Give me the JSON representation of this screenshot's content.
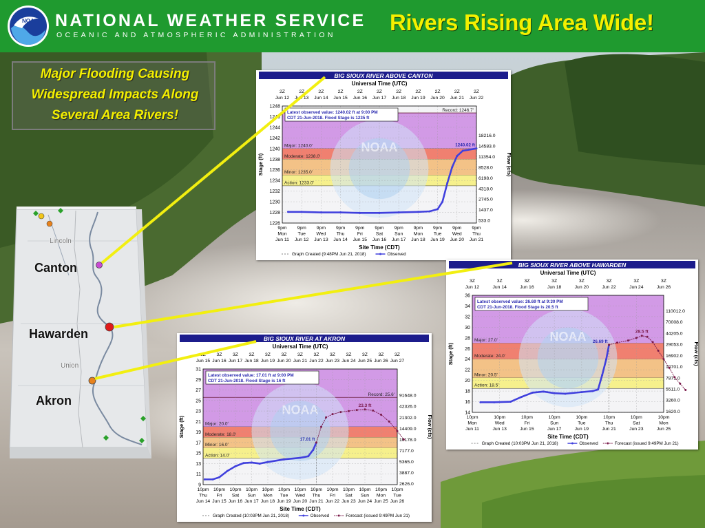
{
  "header": {
    "agency": "NATIONAL WEATHER SERVICE",
    "subagency": "OCEANIC AND ATMOSPHERIC ADMINISTRATION",
    "logo_text": "NOAA",
    "headline": "Rivers Rising Area Wide!"
  },
  "callout": {
    "lines": [
      "Major Flooding Causing",
      "Widespread Impacts Along",
      "Several Area Rivers!"
    ]
  },
  "map": {
    "labels": [
      "Canton",
      "Hawarden",
      "Akron"
    ],
    "places": [
      "Lincoln",
      "Union"
    ],
    "marker_colors": [
      "#c94ad3",
      "#e01a1a",
      "#e8821c"
    ]
  },
  "colors": {
    "major": "#d29ae6",
    "moderate": "#f08070",
    "minor": "#f3c287",
    "action": "#f6f08c",
    "observed": "#4040dd",
    "forecast": "#7a1a4a",
    "title_bar": "#1c1c8c"
  },
  "chart_data": [
    {
      "id": "canton",
      "type": "line",
      "title": "BIG SIOUX RIVER ABOVE CANTON",
      "top_axis_title": "Universal Time (UTC)",
      "bottom_axis_title": "Site Time (CDT)",
      "ylabel": "Stage (ft)",
      "y2label": "Flow (cfs)",
      "ylim": [
        1226,
        1248
      ],
      "yticks": [
        1226,
        1228,
        1230,
        1232,
        1234,
        1236,
        1238,
        1240,
        1242,
        1244,
        1246,
        1248
      ],
      "flow_ticks": [
        {
          "stage": 1226.5,
          "label": "533.0"
        },
        {
          "stage": 1228.5,
          "label": "1437.0"
        },
        {
          "stage": 1230.5,
          "label": "2745.0"
        },
        {
          "stage": 1232.5,
          "label": "4318.0"
        },
        {
          "stage": 1234.5,
          "label": "6198.0"
        },
        {
          "stage": 1236.5,
          "label": "8528.0"
        },
        {
          "stage": 1238.5,
          "label": "11354.0"
        },
        {
          "stage": 1240.5,
          "label": "14583.0"
        },
        {
          "stage": 1242.5,
          "label": "18216.0"
        }
      ],
      "bottom_ticks": [
        [
          "9pm",
          "Mon",
          "Jun 11"
        ],
        [
          "9pm",
          "Tue",
          "Jun 12"
        ],
        [
          "9pm",
          "Wed",
          "Jun 13"
        ],
        [
          "9pm",
          "Thu",
          "Jun 14"
        ],
        [
          "9pm",
          "Fri",
          "Jun 15"
        ],
        [
          "9pm",
          "Sat",
          "Jun 16"
        ],
        [
          "9pm",
          "Sun",
          "Jun 17"
        ],
        [
          "9pm",
          "Mon",
          "Jun 18"
        ],
        [
          "9pm",
          "Tue",
          "Jun 19"
        ],
        [
          "9pm",
          "Wed",
          "Jun 20"
        ],
        [
          "9pm",
          "Thu",
          "Jun 21"
        ]
      ],
      "top_ticks": [
        [
          "2Z",
          "Jun 12"
        ],
        [
          "2Z",
          "Jun 13"
        ],
        [
          "2Z",
          "Jun 14"
        ],
        [
          "2Z",
          "Jun 15"
        ],
        [
          "2Z",
          "Jun 16"
        ],
        [
          "2Z",
          "Jun 17"
        ],
        [
          "2Z",
          "Jun 18"
        ],
        [
          "2Z",
          "Jun 19"
        ],
        [
          "2Z",
          "Jun 20"
        ],
        [
          "2Z",
          "Jun 21"
        ],
        [
          "2Z",
          "Jun 22"
        ]
      ],
      "stages": [
        {
          "name": "Major",
          "label": "Major: 1240.0'",
          "from": 1240,
          "to": 1246.7
        },
        {
          "name": "Moderate",
          "label": "Moderate: 1238.0'",
          "from": 1238,
          "to": 1240
        },
        {
          "name": "Minor",
          "label": "Minor: 1235.0'",
          "from": 1235,
          "to": 1238
        },
        {
          "name": "Action",
          "label": "Action: 1233.0'",
          "from": 1233,
          "to": 1235
        }
      ],
      "record": {
        "value": 1246.7,
        "label": "Record: 1246.7'"
      },
      "latest_lines": [
        "Latest observed value: 1240.02 ft at 9:00 PM",
        "CDT 21-Jun-2018. Flood Stage is 1235 ft"
      ],
      "observed": [
        [
          0.3,
          1228.1
        ],
        [
          1,
          1228.1
        ],
        [
          2,
          1228.0
        ],
        [
          3,
          1228.0
        ],
        [
          4,
          1227.9
        ],
        [
          5,
          1227.9
        ],
        [
          6,
          1228.0
        ],
        [
          7,
          1228.1
        ],
        [
          7.6,
          1228.2
        ],
        [
          8,
          1228.6
        ],
        [
          8.25,
          1230
        ],
        [
          8.5,
          1233.5
        ],
        [
          8.75,
          1236.5
        ],
        [
          9,
          1238.6
        ],
        [
          9.3,
          1239.6
        ],
        [
          10,
          1240.02
        ]
      ],
      "observed_label": "1240.02 ft",
      "forecast": [],
      "legend": [
        "Graph Created (9:48PM Jun 21, 2018)",
        "Observed"
      ]
    },
    {
      "id": "hawarden",
      "type": "line",
      "title": "BIG SIOUX RIVER ABOVE HAWARDEN",
      "top_axis_title": "Universal Time (UTC)",
      "bottom_axis_title": "Site Time (CDT)",
      "ylabel": "Stage (ft)",
      "y2label": "Flow (cfs)",
      "ylim": [
        14,
        36
      ],
      "yticks": [
        14,
        16,
        18,
        20,
        22,
        24,
        26,
        28,
        30,
        32,
        34,
        36
      ],
      "flow_ticks": [
        {
          "stage": 14.2,
          "label": "1620.0"
        },
        {
          "stage": 16.3,
          "label": "3260.0"
        },
        {
          "stage": 18.4,
          "label": "5511.0"
        },
        {
          "stage": 20.5,
          "label": "7871.0"
        },
        {
          "stage": 22.6,
          "label": "10701.0"
        },
        {
          "stage": 24.7,
          "label": "16902.0"
        },
        {
          "stage": 26.8,
          "label": "29053.0"
        },
        {
          "stage": 28.9,
          "label": "44205.0"
        },
        {
          "stage": 31.0,
          "label": "70008.0"
        },
        {
          "stage": 33.1,
          "label": "110012.0"
        }
      ],
      "bottom_ticks": [
        [
          "10pm",
          "Mon",
          "Jun 11"
        ],
        [
          "10pm",
          "Wed",
          "Jun 13"
        ],
        [
          "10pm",
          "Fri",
          "Jun 15"
        ],
        [
          "10pm",
          "Sun",
          "Jun 17"
        ],
        [
          "10pm",
          "Tue",
          "Jun 19"
        ],
        [
          "10pm",
          "Thu",
          "Jun 21"
        ],
        [
          "10pm",
          "Sat",
          "Jun 23"
        ],
        [
          "10pm",
          "Mon",
          "Jun 25"
        ]
      ],
      "top_ticks": [
        [
          "3Z",
          "Jun 12"
        ],
        [
          "3Z",
          "Jun 14"
        ],
        [
          "3Z",
          "Jun 16"
        ],
        [
          "3Z",
          "Jun 18"
        ],
        [
          "3Z",
          "Jun 20"
        ],
        [
          "3Z",
          "Jun 22"
        ],
        [
          "3Z",
          "Jun 24"
        ],
        [
          "3Z",
          "Jun 26"
        ]
      ],
      "stages": [
        {
          "name": "Major",
          "label": "Major: 27.0'",
          "from": 27,
          "to": 36
        },
        {
          "name": "Moderate",
          "label": "Moderate: 24.0'",
          "from": 24,
          "to": 27
        },
        {
          "name": "Minor",
          "label": "Minor: 20.5'",
          "from": 20.5,
          "to": 24
        },
        {
          "name": "Action",
          "label": "Action: 18.5'",
          "from": 18.5,
          "to": 20.5
        }
      ],
      "record": null,
      "latest_lines": [
        "Latest observed value: 26.69 ft at 9:30 PM",
        "CDT 21-Jun-2018. Flood Stage is 20.5 ft"
      ],
      "observed": [
        [
          0.3,
          15.9
        ],
        [
          0.8,
          15.9
        ],
        [
          1.4,
          16.0
        ],
        [
          1.8,
          16.9
        ],
        [
          2.2,
          17.7
        ],
        [
          2.6,
          17.9
        ],
        [
          3.0,
          17.6
        ],
        [
          3.4,
          17.5
        ],
        [
          4.0,
          17.8
        ],
        [
          4.4,
          18.0
        ],
        [
          4.6,
          18.3
        ],
        [
          4.75,
          21
        ],
        [
          4.9,
          24
        ],
        [
          5.0,
          26.69
        ]
      ],
      "observed_label": "26.69 ft",
      "forecast": [
        [
          5.0,
          26.69
        ],
        [
          5.3,
          27.1
        ],
        [
          5.7,
          27.5
        ],
        [
          6.0,
          28.0
        ],
        [
          6.2,
          28.4
        ],
        [
          6.4,
          28.2
        ],
        [
          6.6,
          27.2
        ],
        [
          6.8,
          25.6
        ],
        [
          7.0,
          24.0
        ],
        [
          7.2,
          22.4
        ],
        [
          7.4,
          20.6
        ],
        [
          7.6,
          19.4
        ],
        [
          7.8,
          18.2
        ]
      ],
      "forecast_label": "28.5 ft",
      "legend": [
        "Graph Created (10:03PM Jun 21, 2018)",
        "Observed",
        "Forecast (issued 9:49PM Jun 21)"
      ]
    },
    {
      "id": "akron",
      "type": "line",
      "title": "BIG SIOUX RIVER AT AKRON",
      "top_axis_title": "Universal Time (UTC)",
      "bottom_axis_title": "Site Time (CDT)",
      "ylabel": "Stage (ft)",
      "y2label": "Flow (cfs)",
      "ylim": [
        9,
        31
      ],
      "yticks": [
        9,
        11,
        13,
        15,
        17,
        19,
        21,
        23,
        25,
        27,
        29,
        31
      ],
      "flow_ticks": [
        {
          "stage": 9.2,
          "label": "2626.0"
        },
        {
          "stage": 11.3,
          "label": "3887.0"
        },
        {
          "stage": 13.4,
          "label": "5365.0"
        },
        {
          "stage": 15.5,
          "label": "7177.0"
        },
        {
          "stage": 17.6,
          "label": "10178.0"
        },
        {
          "stage": 19.7,
          "label": "14409.0"
        },
        {
          "stage": 21.8,
          "label": "21302.0"
        },
        {
          "stage": 23.9,
          "label": "42326.0"
        },
        {
          "stage": 26.0,
          "label": "91648.0"
        }
      ],
      "bottom_ticks": [
        [
          "10pm",
          "Thu",
          "Jun 14"
        ],
        [
          "10pm",
          "Fri",
          "Jun 15"
        ],
        [
          "10pm",
          "Sat",
          "Jun 16"
        ],
        [
          "10pm",
          "Sun",
          "Jun 17"
        ],
        [
          "10pm",
          "Mon",
          "Jun 18"
        ],
        [
          "10pm",
          "Tue",
          "Jun 19"
        ],
        [
          "10pm",
          "Wed",
          "Jun 20"
        ],
        [
          "10pm",
          "Thu",
          "Jun 21"
        ],
        [
          "10pm",
          "Fri",
          "Jun 22"
        ],
        [
          "10pm",
          "Sat",
          "Jun 23"
        ],
        [
          "10pm",
          "Sun",
          "Jun 24"
        ],
        [
          "10pm",
          "Mon",
          "Jun 25"
        ],
        [
          "10pm",
          "Tue",
          "Jun 26"
        ]
      ],
      "top_ticks": [
        [
          "3Z",
          "Jun 15"
        ],
        [
          "3Z",
          "Jun 16"
        ],
        [
          "3Z",
          "Jun 17"
        ],
        [
          "3Z",
          "Jun 18"
        ],
        [
          "3Z",
          "Jun 19"
        ],
        [
          "3Z",
          "Jun 20"
        ],
        [
          "3Z",
          "Jun 21"
        ],
        [
          "3Z",
          "Jun 22"
        ],
        [
          "3Z",
          "Jun 23"
        ],
        [
          "3Z",
          "Jun 24"
        ],
        [
          "3Z",
          "Jun 25"
        ],
        [
          "3Z",
          "Jun 26"
        ],
        [
          "3Z",
          "Jun 27"
        ]
      ],
      "stages": [
        {
          "name": "Major",
          "label": "Major: 20.0'",
          "from": 20,
          "to": 31
        },
        {
          "name": "Moderate",
          "label": "Moderate: 18.0'",
          "from": 18,
          "to": 20
        },
        {
          "name": "Minor",
          "label": "Minor: 16.0'",
          "from": 16,
          "to": 18
        },
        {
          "name": "Action",
          "label": "Action: 14.0'",
          "from": 14,
          "to": 16
        }
      ],
      "record": {
        "value": 25.6,
        "label": "Record: 25.6'"
      },
      "latest_lines": [
        "Latest observed value: 17.01 ft at 9:00 PM",
        "CDT 21-Jun-2018. Flood Stage is 16 ft"
      ],
      "observed": [
        [
          0.1,
          10.0
        ],
        [
          0.6,
          10.0
        ],
        [
          1.0,
          10.4
        ],
        [
          1.5,
          11.6
        ],
        [
          2,
          12.5
        ],
        [
          2.5,
          13.1
        ],
        [
          3,
          13.2
        ],
        [
          3.5,
          13.0
        ],
        [
          4,
          13.3
        ],
        [
          5,
          13.8
        ],
        [
          6,
          14.1
        ],
        [
          6.5,
          14.4
        ],
        [
          6.8,
          15.6
        ],
        [
          7.0,
          17.01
        ]
      ],
      "observed_label": "17.01 ft",
      "forecast": [
        [
          7.0,
          17.01
        ],
        [
          7.3,
          20.0
        ],
        [
          7.6,
          21.8
        ],
        [
          8.0,
          22.4
        ],
        [
          8.5,
          22.8
        ],
        [
          9,
          23.0
        ],
        [
          9.5,
          23.2
        ],
        [
          10,
          23.3
        ],
        [
          10.5,
          23.1
        ],
        [
          11,
          22.3
        ],
        [
          11.5,
          21.0
        ],
        [
          12,
          19.2
        ],
        [
          12.4,
          17.6
        ]
      ],
      "forecast_label": "23.3 ft",
      "legend": [
        "Graph Created (10:03PM Jun 21, 2018)",
        "Observed",
        "Forecast (issued 9:49PM Jun 21)"
      ]
    }
  ]
}
